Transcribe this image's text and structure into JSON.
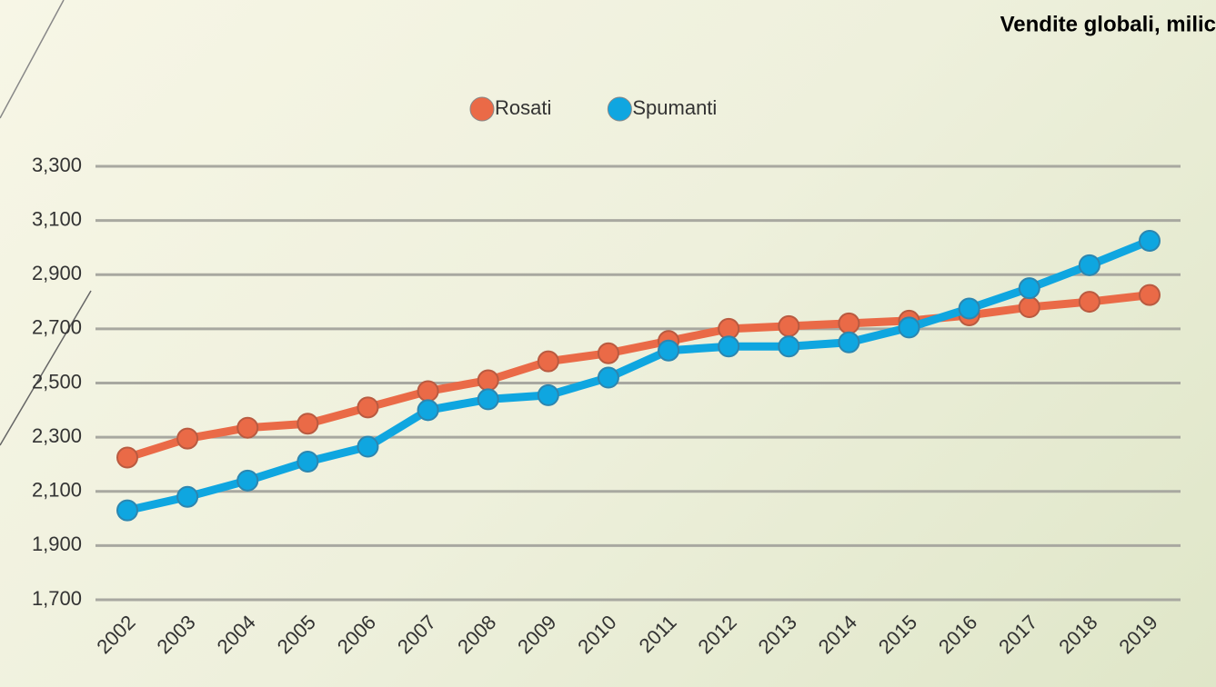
{
  "chart_data": {
    "type": "line",
    "title": "Vendite globali, milic",
    "categories": [
      "2002",
      "2003",
      "2004",
      "2005",
      "2006",
      "2007",
      "2008",
      "2009",
      "2010",
      "2011",
      "2012",
      "2013",
      "2014",
      "2015",
      "2016",
      "2017",
      "2018",
      "2019"
    ],
    "series": [
      {
        "name": "Rosati",
        "color": "#ea6a47",
        "values": [
          2225,
          2295,
          2335,
          2350,
          2410,
          2470,
          2510,
          2580,
          2610,
          2655,
          2700,
          2710,
          2720,
          2730,
          2750,
          2780,
          2800,
          2825
        ]
      },
      {
        "name": "Spumanti",
        "color": "#0fa6e0",
        "values": [
          2030,
          2080,
          2140,
          2210,
          2265,
          2400,
          2440,
          2455,
          2520,
          2620,
          2635,
          2635,
          2650,
          2705,
          2775,
          2850,
          2935,
          3025
        ]
      }
    ],
    "ylim": [
      1700,
      3300
    ],
    "yticks": [
      {
        "value": 1700,
        "label": "1,700"
      },
      {
        "value": 1900,
        "label": "1,900"
      },
      {
        "value": 2100,
        "label": "2,100"
      },
      {
        "value": 2300,
        "label": "2,300"
      },
      {
        "value": 2500,
        "label": "2,500"
      },
      {
        "value": 2700,
        "label": "2,700"
      },
      {
        "value": 2900,
        "label": "2,900"
      },
      {
        "value": 3100,
        "label": "3,100"
      },
      {
        "value": 3300,
        "label": "3,300"
      }
    ],
    "grid": true,
    "legend": "top"
  }
}
